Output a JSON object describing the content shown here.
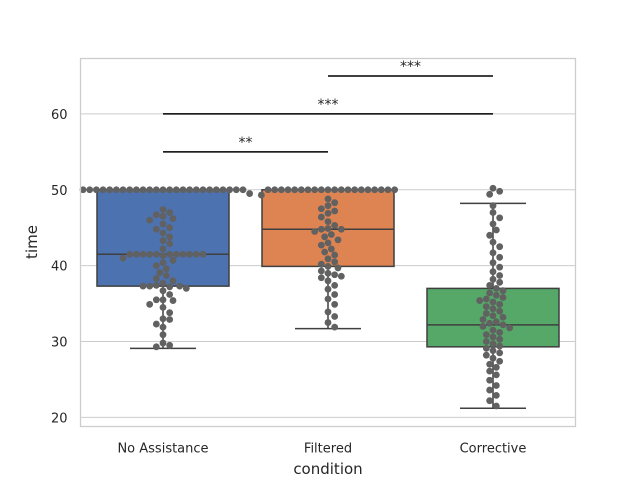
{
  "chart_data": {
    "type": "box",
    "xlabel": "condition",
    "ylabel": "time",
    "ylim": [
      18.8,
      67.3
    ],
    "yticks": [
      20,
      30,
      40,
      50,
      60
    ],
    "grid": true,
    "categories": [
      {
        "name": "No Assistance",
        "color": "#4c72b0",
        "whisker_low": 29.1,
        "q1": 37.3,
        "median": 41.5,
        "q3": 50.0,
        "whisker_high": 50.0,
        "points": [
          50.0,
          50.0,
          50.0,
          50.0,
          50.0,
          50.0,
          50.0,
          50.0,
          50.0,
          50.0,
          50.0,
          50.0,
          50.0,
          50.0,
          50.0,
          50.0,
          50.0,
          50.0,
          50.0,
          50.0,
          50.0,
          50.0,
          50.0,
          50.0,
          50.0,
          49.5,
          47.4,
          47.0,
          46.7,
          46.5,
          46.2,
          46.0,
          45.5,
          45.0,
          44.8,
          44.3,
          43.8,
          43.3,
          42.9,
          42.2,
          41.5,
          41.5,
          41.5,
          41.5,
          41.5,
          41.5,
          41.5,
          41.5,
          41.5,
          41.5,
          41.5,
          41.3,
          41.0,
          40.7,
          40.4,
          40.0,
          39.6,
          39.1,
          38.7,
          38.3,
          38.0,
          37.7,
          37.4,
          37.3,
          37.3,
          37.3,
          37.2,
          37.0,
          36.7,
          36.2,
          35.5,
          35.5,
          35.4,
          34.9,
          34.5,
          33.8,
          33.0,
          32.9,
          32.3,
          31.9,
          30.9,
          29.8,
          29.5,
          29.3
        ],
        "bar_x": 0
      },
      {
        "name": "Filtered",
        "color": "#dd8452",
        "whisker_low": 31.7,
        "q1": 39.9,
        "median": 44.8,
        "q3": 50.0,
        "whisker_high": 50.0,
        "points": [
          50.0,
          50.0,
          50.0,
          50.0,
          50.0,
          50.0,
          50.0,
          50.0,
          50.0,
          50.0,
          50.0,
          50.0,
          50.0,
          50.0,
          50.0,
          50.0,
          50.0,
          50.0,
          50.0,
          50.0,
          49.3,
          48.8,
          48.3,
          47.9,
          47.5,
          47.2,
          46.9,
          46.4,
          45.8,
          45.3,
          44.9,
          44.8,
          44.8,
          44.5,
          44.1,
          43.8,
          43.4,
          43.0,
          42.7,
          42.2,
          41.8,
          41.4,
          40.9,
          40.5,
          40.2,
          39.9,
          39.7,
          39.3,
          39.0,
          38.8,
          38.6,
          38.4,
          38.0,
          37.4,
          36.9,
          36.2,
          35.6,
          34.9,
          33.9,
          33.3,
          32.5,
          31.9
        ],
        "bar_x": 1
      },
      {
        "name": "Corrective",
        "color": "#55a868",
        "whisker_low": 21.2,
        "q1": 29.3,
        "median": 32.2,
        "q3": 37.0,
        "whisker_high": 48.2,
        "points": [
          50.2,
          49.8,
          49.4,
          47.9,
          47.0,
          46.3,
          45.5,
          44.7,
          44.0,
          43.1,
          42.5,
          41.7,
          41.1,
          40.4,
          39.8,
          39.2,
          38.7,
          38.2,
          37.8,
          37.4,
          37.0,
          36.7,
          36.4,
          36.1,
          35.8,
          35.6,
          35.4,
          35.2,
          34.9,
          34.6,
          34.3,
          34.0,
          33.7,
          33.4,
          33.2,
          32.9,
          32.6,
          32.4,
          32.2,
          32.0,
          31.8,
          31.5,
          31.2,
          30.9,
          30.6,
          30.3,
          30.0,
          29.7,
          29.4,
          29.1,
          28.8,
          28.5,
          28.2,
          27.8,
          27.4,
          27.0,
          26.6,
          26.1,
          25.6,
          24.9,
          24.2,
          23.6,
          22.9,
          22.2,
          21.5
        ],
        "bar_x": 2
      }
    ],
    "annotations": [
      {
        "from": "No Assistance",
        "to": "Filtered",
        "label": "**",
        "y": 55
      },
      {
        "from": "No Assistance",
        "to": "Corrective",
        "label": "***",
        "y": 60
      },
      {
        "from": "Filtered",
        "to": "Corrective",
        "label": "***",
        "y": 65
      }
    ],
    "point_color": "#616161",
    "box_edge_color": "#3f3f3f",
    "grid_color": "#cccccc"
  }
}
